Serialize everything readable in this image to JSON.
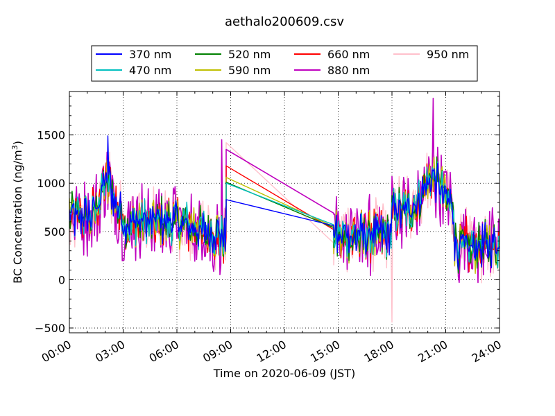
{
  "chart_data": {
    "type": "line",
    "title": "aethalo200609.csv",
    "xlabel": "Time on 2020-06-09 (JST)",
    "ylabel_main": "BC Concentration (ng/m",
    "ylabel_sup": "3",
    "ylabel_end": ")",
    "xlim": [
      "00:00",
      "24:00"
    ],
    "ylim": [
      -550,
      1950
    ],
    "grid": true,
    "grid_style": "dotted",
    "legend_position": "top-center",
    "legend_columns": 4,
    "x_ticks": [
      "00:00",
      "03:00",
      "06:00",
      "09:00",
      "12:00",
      "15:00",
      "18:00",
      "21:00",
      "24:00"
    ],
    "y_ticks": [
      -500,
      0,
      500,
      1000,
      1500
    ],
    "series": [
      {
        "name": "370 nm",
        "color": "#0000ff"
      },
      {
        "name": "470 nm",
        "color": "#00bfbf"
      },
      {
        "name": "520 nm",
        "color": "#008000"
      },
      {
        "name": "590 nm",
        "color": "#bfbf00"
      },
      {
        "name": "660 nm",
        "color": "#ff0000"
      },
      {
        "name": "880 nm",
        "color": "#bf00bf"
      },
      {
        "name": "950 nm",
        "color": "#ffc0cb"
      }
    ],
    "gap": {
      "start": "08:45",
      "end": "14:45"
    },
    "gap_endpoints": {
      "370 nm": [
        830,
        560
      ],
      "470 nm": [
        1000,
        570
      ],
      "520 nm": [
        1010,
        540
      ],
      "590 nm": [
        1060,
        550
      ],
      "660 nm": [
        1180,
        520
      ],
      "880 nm": [
        1350,
        690
      ],
      "950 nm": [
        1420,
        380
      ]
    },
    "peaks": [
      {
        "time": "02:10",
        "value": 1490,
        "series": "370 nm"
      },
      {
        "time": "08:30",
        "value": 1450,
        "series": "880 nm"
      },
      {
        "time": "20:18",
        "value": 1880,
        "series": "880 nm"
      },
      {
        "time": "18:00",
        "value": -440,
        "series": "950 nm"
      }
    ]
  }
}
